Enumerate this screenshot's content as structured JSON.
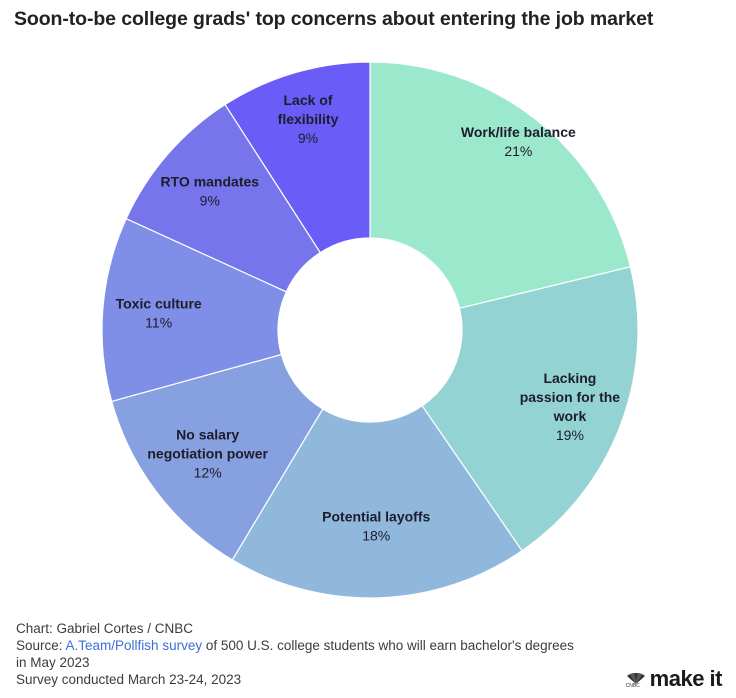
{
  "title": "Soon-to-be college grads' top concerns about entering the job market",
  "chart_data": {
    "type": "pie",
    "donut": true,
    "title": "Soon-to-be college grads' top concerns about entering the job market",
    "slices": [
      {
        "label_lines": [
          "Work/life balance"
        ],
        "value": 21,
        "value_label": "21%",
        "color": "#9ce8cc"
      },
      {
        "label_lines": [
          "Lacking",
          "passion for the",
          "work"
        ],
        "value": 19,
        "value_label": "19%",
        "color": "#93d3d3"
      },
      {
        "label_lines": [
          "Potential layoffs"
        ],
        "value": 18,
        "value_label": "18%",
        "color": "#8fb8dc"
      },
      {
        "label_lines": [
          "No salary",
          "negotiation power"
        ],
        "value": 12,
        "value_label": "12%",
        "color": "#86a0e0"
      },
      {
        "label_lines": [
          "Toxic culture"
        ],
        "value": 11,
        "value_label": "11%",
        "color": "#7f8ee6"
      },
      {
        "label_lines": [
          "RTO mandates"
        ],
        "value": 9,
        "value_label": "9%",
        "color": "#7675ec"
      },
      {
        "label_lines": [
          "Lack of",
          "flexibility"
        ],
        "value": 9,
        "value_label": "9%",
        "color": "#6a5cf6"
      }
    ]
  },
  "footer": {
    "credit": "Chart: Gabriel Cortes / CNBC",
    "source_prefix": "Source: ",
    "source_link": "A.Team/Pollfish survey",
    "source_rest": " of 500 U.S. college students who will earn bachelor's degrees",
    "source_line2": "in May 2023",
    "survey": "Survey conducted March 23-24, 2023"
  },
  "brand": {
    "network_small": "CNBC",
    "wordmark": "make it"
  }
}
